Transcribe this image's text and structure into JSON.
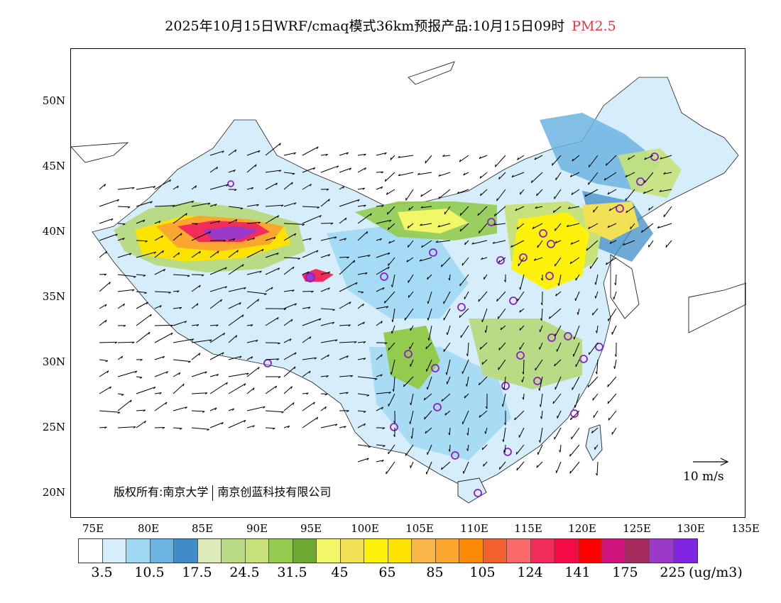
{
  "header": {
    "title": "2025年10月15日WRF/cmaq模式36km预报产品:10月15日09时",
    "pollutant": "PM2.5"
  },
  "map": {
    "latitude_labels": [
      "50N",
      "45N",
      "40N",
      "35N",
      "30N",
      "25N",
      "20N"
    ],
    "longitude_labels": [
      "75E",
      "80E",
      "85E",
      "90E",
      "95E",
      "100E",
      "105E",
      "110E",
      "115E",
      "120E",
      "125E",
      "130E",
      "135E"
    ],
    "copyright_left": "版权所有:南京大学",
    "copyright_right": "南京创蓝科技有限公司",
    "wind_reference": "10 m/s"
  },
  "colorbar": {
    "units": "(ug/m3)",
    "colors": [
      "#ffffff",
      "#d6eefb",
      "#a0d8f3",
      "#6cb3e1",
      "#3f8cc8",
      "#dcebb8",
      "#b9db86",
      "#c7e27a",
      "#92cb4e",
      "#6eaa33",
      "#f1f766",
      "#f2e155",
      "#fef10c",
      "#fde300",
      "#f9b648",
      "#fba62f",
      "#fc8a06",
      "#f0612d",
      "#fc6b6b",
      "#f32d5a",
      "#f50b48",
      "#fe0000",
      "#ce137c",
      "#a62c5e",
      "#9b39c8",
      "#8026e2"
    ],
    "labels": [
      "3.5",
      "10.5",
      "17.5",
      "24.5",
      "31.5",
      "45",
      "65",
      "85",
      "105",
      "124",
      "141",
      "175",
      "225"
    ]
  }
}
